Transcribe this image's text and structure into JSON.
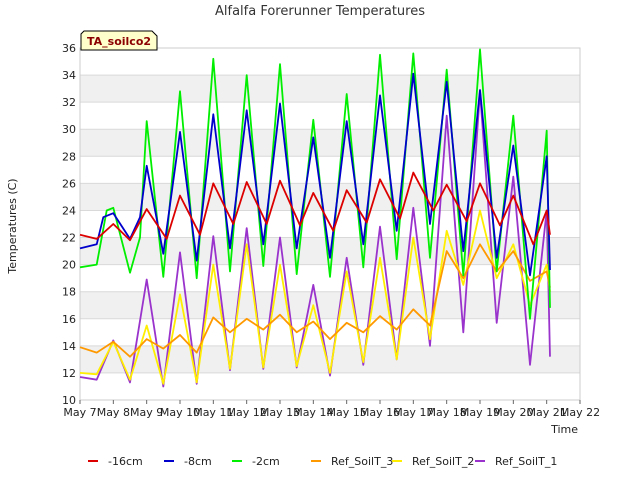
{
  "chart_data": {
    "type": "line",
    "title": "Alfalfa Forerunner Temperatures",
    "xlabel": "Time",
    "ylabel": "Temperatures (C)",
    "badge": "TA_soilco2",
    "ylim": [
      10,
      36
    ],
    "yticks": [
      10,
      12,
      14,
      16,
      18,
      20,
      22,
      24,
      26,
      28,
      30,
      32,
      34,
      36
    ],
    "xlim": [
      "May 7",
      "May 22"
    ],
    "xtick_labels": [
      "May 7",
      "May 8",
      "May 9",
      "May 10",
      "May 11",
      "May 12",
      "May 13",
      "May 14",
      "May 15",
      "May 16",
      "May 17",
      "May 18",
      "May 19",
      "May 20",
      "May 21",
      "May 22"
    ],
    "grid": "horizontal bands",
    "legend_position": "bottom",
    "series": [
      {
        "name": "-16cm",
        "color": "#dd0000",
        "points": [
          [
            "May 7",
            22.2
          ],
          [
            "May 7.5",
            21.9
          ],
          [
            "May 8",
            23.0
          ],
          [
            "May 8.5",
            21.8
          ],
          [
            "May 9",
            24.1
          ],
          [
            "May 9.6",
            21.9
          ],
          [
            "May 10",
            25.1
          ],
          [
            "May 10.6",
            22.2
          ],
          [
            "May 11",
            26.0
          ],
          [
            "May 11.6",
            23.0
          ],
          [
            "May 12",
            26.1
          ],
          [
            "May 12.6",
            23.0
          ],
          [
            "May 13",
            26.2
          ],
          [
            "May 13.6",
            22.9
          ],
          [
            "May 14",
            25.3
          ],
          [
            "May 14.6",
            22.5
          ],
          [
            "May 15",
            25.5
          ],
          [
            "May 15.6",
            23.1
          ],
          [
            "May 16",
            26.3
          ],
          [
            "May 16.6",
            23.4
          ],
          [
            "May 17",
            26.8
          ],
          [
            "May 17.6",
            24.0
          ],
          [
            "May 18",
            25.9
          ],
          [
            "May 18.6",
            23.2
          ],
          [
            "May 19",
            26.0
          ],
          [
            "May 19.6",
            22.9
          ],
          [
            "May 20",
            25.1
          ],
          [
            "May 20.6",
            21.5
          ],
          [
            "May 21",
            24.0
          ],
          [
            "May 21.1",
            22.2
          ]
        ]
      },
      {
        "name": "-8cm",
        "color": "#0000cc",
        "points": [
          [
            "May 7",
            21.2
          ],
          [
            "May 7.5",
            21.5
          ],
          [
            "May 7.7",
            23.5
          ],
          [
            "May 8",
            23.8
          ],
          [
            "May 8.5",
            21.9
          ],
          [
            "May 8.8",
            23.5
          ],
          [
            "May 9",
            27.3
          ],
          [
            "May 9.5",
            20.8
          ],
          [
            "May 10",
            29.8
          ],
          [
            "May 10.5",
            20.3
          ],
          [
            "May 11",
            31.1
          ],
          [
            "May 11.5",
            21.2
          ],
          [
            "May 12",
            31.4
          ],
          [
            "May 12.5",
            21.5
          ],
          [
            "May 13",
            31.9
          ],
          [
            "May 13.5",
            21.2
          ],
          [
            "May 14",
            29.4
          ],
          [
            "May 14.5",
            20.5
          ],
          [
            "May 15",
            30.6
          ],
          [
            "May 15.5",
            21.5
          ],
          [
            "May 16",
            32.5
          ],
          [
            "May 16.5",
            22.5
          ],
          [
            "May 17",
            34.1
          ],
          [
            "May 17.5",
            23.0
          ],
          [
            "May 18",
            33.5
          ],
          [
            "May 18.5",
            21.0
          ],
          [
            "May 19",
            32.9
          ],
          [
            "May 19.5",
            20.5
          ],
          [
            "May 20",
            28.8
          ],
          [
            "May 20.5",
            19.2
          ],
          [
            "May 21",
            28.0
          ],
          [
            "May 21.1",
            19.6
          ]
        ]
      },
      {
        "name": "-2cm",
        "color": "#00ee00",
        "points": [
          [
            "May 7",
            19.8
          ],
          [
            "May 7.5",
            20.0
          ],
          [
            "May 7.8",
            24.0
          ],
          [
            "May 8",
            24.2
          ],
          [
            "May 8.5",
            19.4
          ],
          [
            "May 8.8",
            22.0
          ],
          [
            "May 9",
            30.6
          ],
          [
            "May 9.5",
            19.1
          ],
          [
            "May 10",
            32.8
          ],
          [
            "May 10.5",
            19.0
          ],
          [
            "May 11",
            35.2
          ],
          [
            "May 11.5",
            19.5
          ],
          [
            "May 12",
            34.0
          ],
          [
            "May 12.5",
            19.9
          ],
          [
            "May 13",
            34.8
          ],
          [
            "May 13.5",
            19.3
          ],
          [
            "May 14",
            30.7
          ],
          [
            "May 14.5",
            19.1
          ],
          [
            "May 15",
            32.6
          ],
          [
            "May 15.5",
            19.8
          ],
          [
            "May 16",
            35.5
          ],
          [
            "May 16.5",
            20.4
          ],
          [
            "May 17",
            35.6
          ],
          [
            "May 17.5",
            20.5
          ],
          [
            "May 18",
            34.4
          ],
          [
            "May 18.5",
            19.2
          ],
          [
            "May 19",
            35.9
          ],
          [
            "May 19.5",
            19.5
          ],
          [
            "May 20",
            31.0
          ],
          [
            "May 20.5",
            16.0
          ],
          [
            "May 21",
            29.9
          ],
          [
            "May 21.1",
            16.8
          ]
        ]
      },
      {
        "name": "Ref_SoilT_3",
        "color": "#ff9900",
        "points": [
          [
            "May 7",
            13.9
          ],
          [
            "May 7.5",
            13.5
          ],
          [
            "May 8",
            14.3
          ],
          [
            "May 8.5",
            13.2
          ],
          [
            "May 9",
            14.5
          ],
          [
            "May 9.5",
            13.8
          ],
          [
            "May 10",
            14.8
          ],
          [
            "May 10.5",
            13.5
          ],
          [
            "May 11",
            16.1
          ],
          [
            "May 11.5",
            15.0
          ],
          [
            "May 12",
            16.0
          ],
          [
            "May 12.5",
            15.2
          ],
          [
            "May 13",
            16.3
          ],
          [
            "May 13.5",
            15.0
          ],
          [
            "May 14",
            15.8
          ],
          [
            "May 14.5",
            14.5
          ],
          [
            "May 15",
            15.7
          ],
          [
            "May 15.5",
            15.0
          ],
          [
            "May 16",
            16.2
          ],
          [
            "May 16.5",
            15.2
          ],
          [
            "May 17",
            16.7
          ],
          [
            "May 17.5",
            15.5
          ],
          [
            "May 18",
            21.0
          ],
          [
            "May 18.5",
            19.0
          ],
          [
            "May 19",
            21.5
          ],
          [
            "May 19.5",
            19.5
          ],
          [
            "May 20",
            21.0
          ],
          [
            "May 20.5",
            18.8
          ],
          [
            "May 21",
            19.5
          ],
          [
            "May 21.1",
            18.3
          ]
        ]
      },
      {
        "name": "Ref_SoilT_2",
        "color": "#ffee00",
        "points": [
          [
            "May 7",
            12.0
          ],
          [
            "May 7.5",
            11.9
          ],
          [
            "May 8",
            14.3
          ],
          [
            "May 8.5",
            11.5
          ],
          [
            "May 9",
            15.5
          ],
          [
            "May 9.5",
            11.2
          ],
          [
            "May 10",
            17.8
          ],
          [
            "May 10.5",
            11.3
          ],
          [
            "May 11",
            20.0
          ],
          [
            "May 11.5",
            12.3
          ],
          [
            "May 12",
            21.5
          ],
          [
            "May 12.5",
            12.4
          ],
          [
            "May 13",
            20.0
          ],
          [
            "May 13.5",
            12.5
          ],
          [
            "May 14",
            17.0
          ],
          [
            "May 14.5",
            12.0
          ],
          [
            "May 15",
            19.5
          ],
          [
            "May 15.5",
            12.8
          ],
          [
            "May 16",
            20.5
          ],
          [
            "May 16.5",
            13.0
          ],
          [
            "May 17",
            22.0
          ],
          [
            "May 17.5",
            14.5
          ],
          [
            "May 18",
            22.5
          ],
          [
            "May 18.5",
            18.5
          ],
          [
            "May 19",
            24.0
          ],
          [
            "May 19.5",
            19.0
          ],
          [
            "May 20",
            21.5
          ],
          [
            "May 20.5",
            17.0
          ],
          [
            "May 21",
            20.0
          ],
          [
            "May 21.1",
            18.0
          ]
        ]
      },
      {
        "name": "Ref_SoilT_1",
        "color": "#9933cc",
        "points": [
          [
            "May 7",
            11.7
          ],
          [
            "May 7.5",
            11.5
          ],
          [
            "May 8",
            14.4
          ],
          [
            "May 8.5",
            11.3
          ],
          [
            "May 9",
            18.9
          ],
          [
            "May 9.5",
            11.0
          ],
          [
            "May 10",
            20.9
          ],
          [
            "May 10.5",
            11.2
          ],
          [
            "May 11",
            22.1
          ],
          [
            "May 11.5",
            12.2
          ],
          [
            "May 12",
            22.7
          ],
          [
            "May 12.5",
            12.3
          ],
          [
            "May 13",
            22.0
          ],
          [
            "May 13.5",
            12.4
          ],
          [
            "May 14",
            18.5
          ],
          [
            "May 14.5",
            11.8
          ],
          [
            "May 15",
            20.5
          ],
          [
            "May 15.5",
            12.6
          ],
          [
            "May 16",
            22.8
          ],
          [
            "May 16.5",
            13.0
          ],
          [
            "May 17",
            24.2
          ],
          [
            "May 17.5",
            14.0
          ],
          [
            "May 18",
            31.0
          ],
          [
            "May 18.5",
            15.0
          ],
          [
            "May 19",
            32.8
          ],
          [
            "May 19.5",
            15.7
          ],
          [
            "May 20",
            26.5
          ],
          [
            "May 20.5",
            12.6
          ],
          [
            "May 21",
            24.0
          ],
          [
            "May 21.1",
            13.2
          ]
        ]
      }
    ]
  }
}
